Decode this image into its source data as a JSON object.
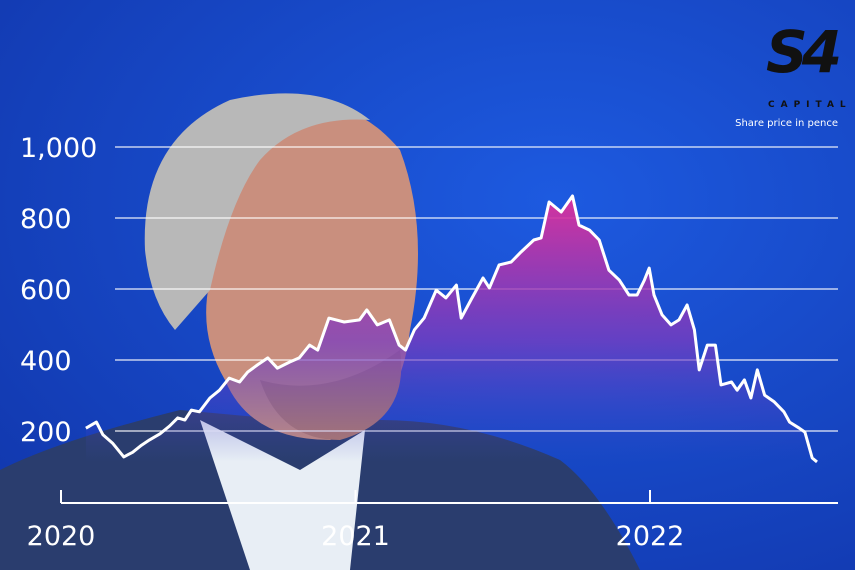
{
  "logo": {
    "text": "S4",
    "subtext": "CAPITAL"
  },
  "colors": {
    "background": "#1446c8",
    "line": "#ffffff",
    "fill_top": "#e0309a",
    "fill_bottom": "#5a3cc0",
    "suit": "#2a3d6e"
  },
  "chart_data": {
    "type": "area",
    "title": "",
    "note": "Share price in pence",
    "xlabel": "",
    "ylabel": "",
    "x_ticks": [
      "2020",
      "2021",
      "2022"
    ],
    "y_ticks": [
      "200",
      "400",
      "600",
      "800",
      "1,000"
    ],
    "y_tick_values": [
      200,
      400,
      600,
      800,
      1000
    ],
    "grid": true,
    "legend": "none",
    "series": [
      {
        "x": [
          "2020-02-01",
          "2020-02-14",
          "2020-02-22",
          "2020-03-05",
          "2020-03-19",
          "2020-03-30",
          "2020-04-10",
          "2020-04-20",
          "2020-05-03",
          "2020-05-15",
          "2020-05-25",
          "2020-06-03",
          "2020-06-11",
          "2020-06-21",
          "2020-07-04",
          "2020-07-16",
          "2020-07-28",
          "2020-08-10",
          "2020-08-20",
          "2020-09-01",
          "2020-09-14",
          "2020-09-26",
          "2020-10-11",
          "2020-10-23",
          "2020-11-05",
          "2020-11-15",
          "2020-11-29",
          "2020-12-18",
          "2021-01-06",
          "2021-01-15",
          "2021-01-28",
          "2021-02-12",
          "2021-02-24",
          "2021-03-04",
          "2021-03-15",
          "2021-03-27",
          "2021-04-11",
          "2021-04-23",
          "2021-05-06",
          "2021-05-12",
          "2021-05-24",
          "2021-06-08",
          "2021-06-16",
          "2021-06-28",
          "2021-07-13",
          "2021-07-25",
          "2021-08-10",
          "2021-08-19",
          "2021-08-29",
          "2021-09-13",
          "2021-09-27",
          "2021-10-05",
          "2021-10-18",
          "2021-10-30",
          "2021-11-11",
          "2021-11-24",
          "2021-12-06",
          "2021-12-16",
          "2021-12-25",
          "2021-12-31",
          "2022-01-06",
          "2022-01-16",
          "2022-01-27",
          "2022-02-06",
          "2022-02-16",
          "2022-02-25",
          "2022-03-03",
          "2022-03-13",
          "2022-03-23",
          "2022-03-30",
          "2022-04-12",
          "2022-04-19",
          "2022-04-28",
          "2022-05-06",
          "2022-05-14",
          "2022-05-23",
          "2022-06-04",
          "2022-06-16",
          "2022-06-23",
          "2022-07-05",
          "2022-07-12",
          "2022-07-21",
          "2022-07-27"
        ],
        "y": [
          208,
          225,
          190,
          166,
          127,
          140,
          160,
          175,
          192,
          214,
          237,
          231,
          259,
          254,
          293,
          315,
          349,
          338,
          366,
          386,
          406,
          377,
          394,
          406,
          442,
          428,
          518,
          507,
          513,
          541,
          499,
          513,
          442,
          428,
          485,
          518,
          597,
          575,
          611,
          518,
          569,
          631,
          603,
          668,
          676,
          704,
          738,
          744,
          845,
          817,
          862,
          780,
          766,
          738,
          653,
          625,
          583,
          583,
          625,
          659,
          583,
          527,
          499,
          513,
          555,
          485,
          372,
          442,
          442,
          330,
          338,
          315,
          344,
          293,
          372,
          301,
          282,
          254,
          225,
          208,
          197,
          124,
          113
        ]
      }
    ]
  }
}
